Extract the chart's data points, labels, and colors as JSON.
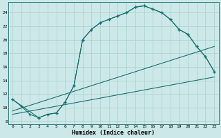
{
  "xlabel": "Humidex (Indice chaleur)",
  "bg_color": "#cce8e8",
  "grid_color": "#aacfcf",
  "line_color": "#1a7070",
  "xlim": [
    -0.5,
    23.5
  ],
  "ylim": [
    7.5,
    25.5
  ],
  "yticks": [
    8,
    10,
    12,
    14,
    16,
    18,
    20,
    22,
    24
  ],
  "xticks": [
    0,
    1,
    2,
    3,
    4,
    5,
    6,
    7,
    8,
    9,
    10,
    11,
    12,
    13,
    14,
    15,
    16,
    17,
    18,
    19,
    20,
    21,
    22,
    23
  ],
  "line1_x": [
    0,
    1,
    2,
    3,
    4,
    5,
    6,
    7,
    8,
    9,
    10,
    11,
    12,
    13,
    14,
    15,
    16,
    17,
    18,
    19,
    20,
    21,
    22,
    23
  ],
  "line1_y": [
    11.2,
    10.2,
    9.0,
    8.5,
    9.0,
    9.2,
    10.8,
    13.2,
    20.0,
    21.5,
    22.5,
    23.0,
    23.5,
    24.0,
    24.8,
    25.0,
    24.5,
    24.0,
    23.0,
    21.5,
    20.8,
    19.0,
    17.5,
    15.3
  ],
  "line2_x": [
    0,
    3,
    4,
    5,
    6,
    7,
    8,
    9,
    10,
    11,
    12,
    13,
    14,
    15,
    16,
    17,
    18,
    19,
    20,
    21,
    22,
    23
  ],
  "line2_y": [
    11.2,
    8.5,
    9.0,
    9.2,
    10.8,
    13.2,
    20.0,
    21.5,
    22.5,
    23.0,
    23.5,
    24.0,
    24.8,
    25.0,
    24.5,
    24.0,
    23.0,
    21.5,
    20.8,
    19.0,
    17.5,
    15.3
  ],
  "line3_x": [
    0,
    23
  ],
  "line3_y": [
    9.5,
    19.0
  ],
  "line4_x": [
    0,
    23
  ],
  "line4_y": [
    9.0,
    14.5
  ]
}
